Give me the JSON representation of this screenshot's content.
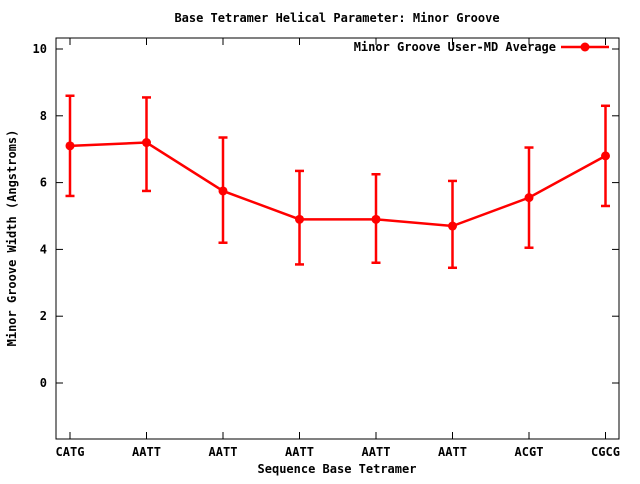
{
  "title": "Base Tetramer Helical Parameter: Minor Groove",
  "legend": {
    "label": "Minor Groove User-MD Average",
    "marker": "filled-circle-on-line"
  },
  "axes": {
    "x_label": "Sequence Base Tetramer",
    "y_label": "Minor Groove Width (Angstroms)",
    "y_tick_labels": [
      "0",
      "2",
      "4",
      "6",
      "8",
      "10"
    ]
  },
  "colors": {
    "series": "#ff0000",
    "axis": "#000000",
    "background": "#ffffff",
    "text": "#000000"
  },
  "chart_data": {
    "type": "line",
    "title": "Base Tetramer Helical Parameter: Minor Groove",
    "xlabel": "Sequence Base Tetramer",
    "ylabel": "Minor Groove Width (Angstroms)",
    "categories": [
      "CATG",
      "AATT",
      "AATT",
      "AATT",
      "AATT",
      "AATT",
      "ACGT",
      "CGCG"
    ],
    "y_ticks": [
      0,
      2,
      4,
      6,
      8,
      10
    ],
    "ylim": [
      -1.7,
      10.35
    ],
    "grid": false,
    "legend_position": "top-right-inside",
    "error_bars": true,
    "marker": "filled-circle",
    "series": [
      {
        "name": "Minor Groove User-MD Average",
        "color": "#ff0000",
        "values": [
          7.1,
          7.2,
          5.75,
          4.9,
          4.9,
          4.7,
          5.55,
          6.8
        ],
        "error_low": [
          5.6,
          5.75,
          4.2,
          3.55,
          3.6,
          3.45,
          4.05,
          5.3
        ],
        "error_high": [
          8.6,
          8.55,
          7.35,
          6.35,
          6.25,
          6.05,
          7.05,
          8.3
        ]
      }
    ]
  }
}
